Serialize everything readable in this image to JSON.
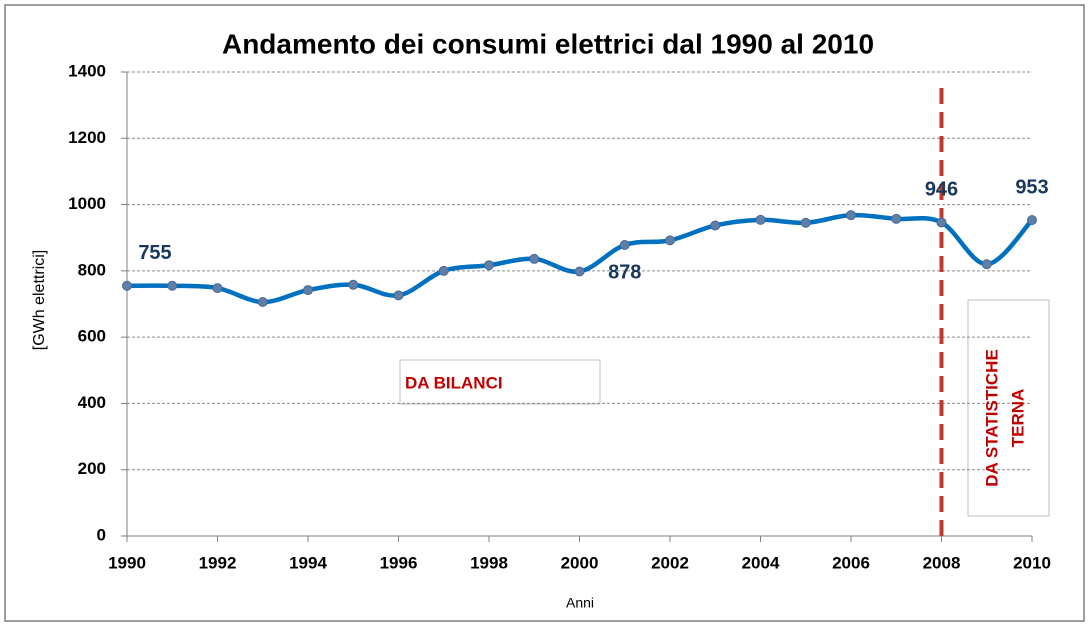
{
  "chart_data": {
    "type": "line",
    "title": "Andamento dei consumi elettrici dal 1990 al 2010",
    "x_label": "Anni",
    "y_label": "[GWh elettrici]",
    "x": [
      1990,
      1991,
      1992,
      1993,
      1994,
      1995,
      1996,
      1997,
      1998,
      1999,
      2000,
      2001,
      2002,
      2003,
      2004,
      2005,
      2006,
      2007,
      2008,
      2009,
      2010
    ],
    "series": [
      {
        "name": "Consumi",
        "color": "#0070c0",
        "values": [
          755,
          755,
          748,
          706,
          742,
          758,
          726,
          800,
          817,
          836,
          798,
          878,
          892,
          937,
          954,
          945,
          968,
          957,
          946,
          820,
          953
        ],
        "value_labels": [
          "755",
          null,
          null,
          null,
          null,
          null,
          null,
          null,
          null,
          null,
          null,
          "878",
          null,
          null,
          null,
          null,
          null,
          null,
          "946",
          null,
          "953"
        ]
      }
    ],
    "xlim": [
      1990,
      2010
    ],
    "xticks": [
      1990,
      1992,
      1994,
      1996,
      1998,
      2000,
      2002,
      2004,
      2006,
      2008,
      2010
    ],
    "ylim": [
      0,
      1400
    ],
    "yticks": [
      0,
      200,
      400,
      600,
      800,
      1000,
      1200,
      1400
    ],
    "grid": true,
    "vline": {
      "x": 2008,
      "color": "#c0392b"
    },
    "annotations": [
      {
        "lines": [
          "DA BILANCI"
        ]
      },
      {
        "lines": [
          "DA STATISTICHE",
          "TERNA"
        ]
      }
    ]
  }
}
